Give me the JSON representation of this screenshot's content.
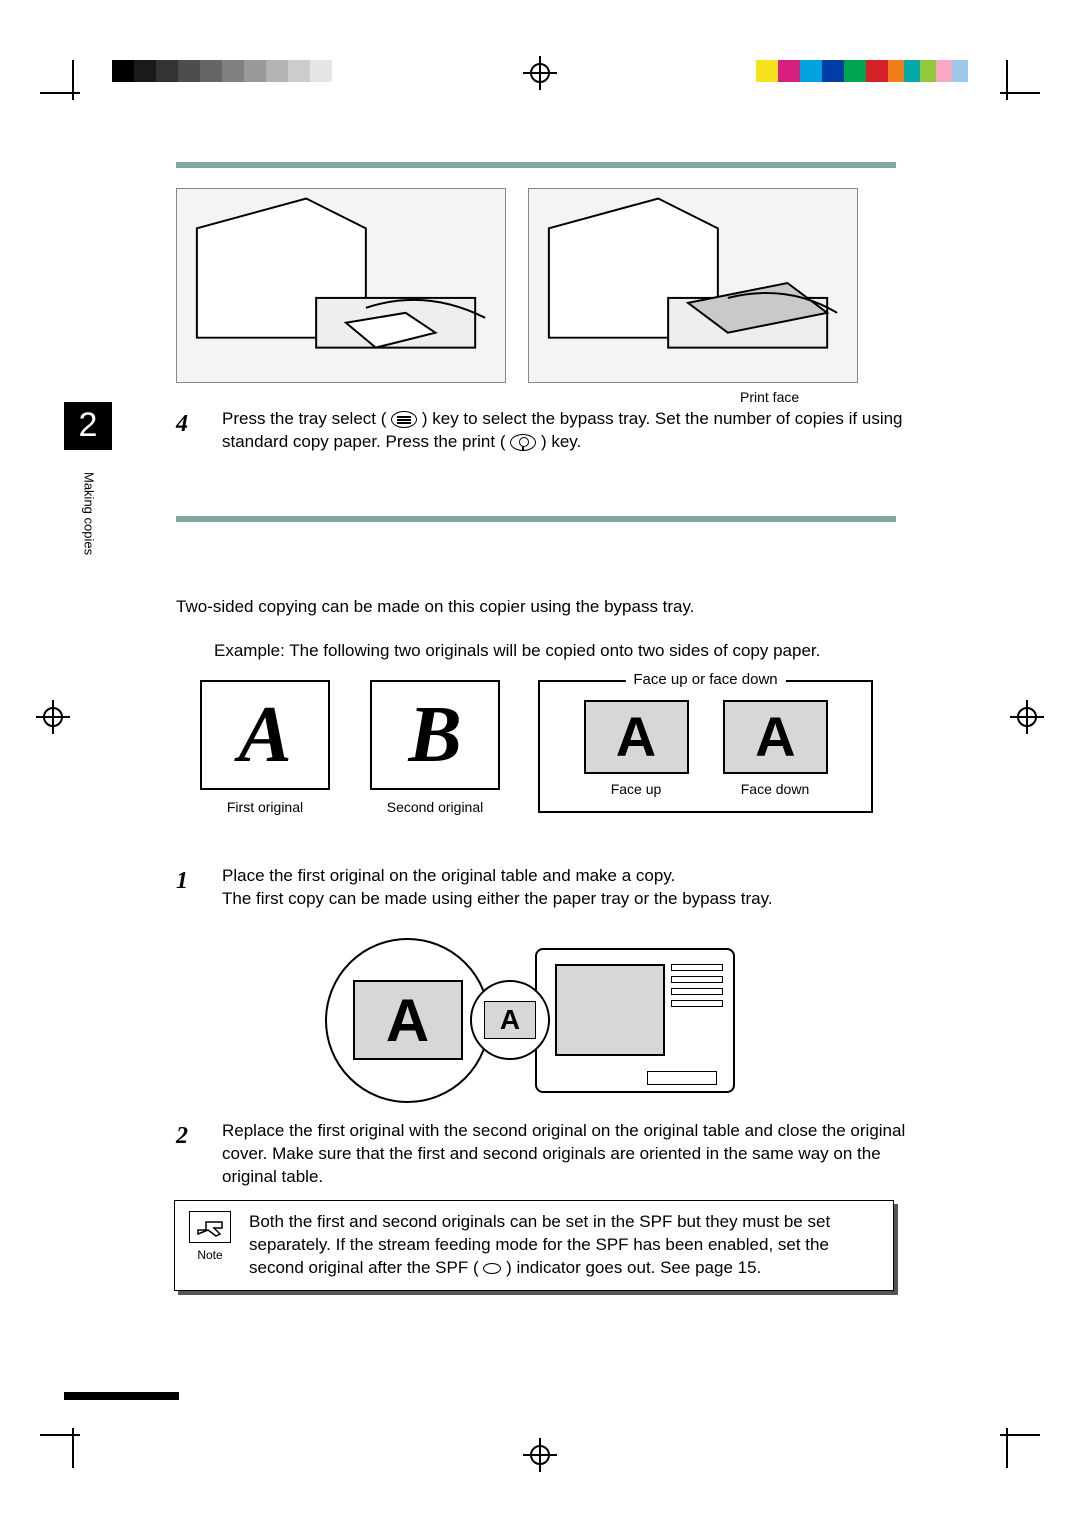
{
  "registration": {
    "gray_steps": [
      "#000000",
      "#1a1a1a",
      "#333333",
      "#4d4d4d",
      "#666666",
      "#808080",
      "#999999",
      "#b3b3b3",
      "#cccccc",
      "#e6e6e6"
    ],
    "color_swatches": [
      "#f6e21a",
      "#d61f7f",
      "#00a3e0",
      "#003da5",
      "#00a551",
      "#d62027",
      "#ef7f1a",
      "#00aaa7",
      "#92c83e",
      "#f9a8c2",
      "#9cc9eb"
    ]
  },
  "top_rule_color": "#7fa8a0",
  "section_rule_color": "#7fa8a0",
  "chapter_number": "2",
  "side_label": "Making copies",
  "print_face_label": "Print face",
  "steps": {
    "s4": {
      "num": "4",
      "text_a": "Press the tray select (",
      "text_b": ") key to select the bypass tray. Set the number of copies if using standard copy paper. Press the print (",
      "text_c": ") key."
    },
    "intro": "Two-sided copying can be made on this copier using the bypass tray.",
    "example": "Example:   The following two originals will be copied onto two sides of copy paper.",
    "s1": {
      "num": "1",
      "line1": "Place the first original on the original table and make a copy.",
      "line2": "The first copy can be made using either the paper tray or the bypass tray."
    },
    "s2": {
      "num": "2",
      "text": "Replace the first original with the second original on the original table and close the original cover. Make sure that the first and second originals are oriented in the same way on the original table."
    }
  },
  "originals": {
    "first": {
      "letter": "A",
      "label": "First original"
    },
    "second": {
      "letter": "B",
      "label": "Second original"
    }
  },
  "face_group": {
    "legend": "Face up or face down",
    "up": {
      "letter": "A",
      "label": "Face up"
    },
    "down": {
      "letter": "A",
      "label": "Face down",
      "flipped": true
    }
  },
  "diagram": {
    "big_letter": "A",
    "small_letter": "A"
  },
  "note": {
    "label": "Note",
    "text_a": "Both the first and second originals can be set in the SPF but they must be set separately. If the stream feeding mode for the SPF has been enabled, set the second original after the SPF (",
    "text_b": ") indicator goes out. See page 15."
  }
}
